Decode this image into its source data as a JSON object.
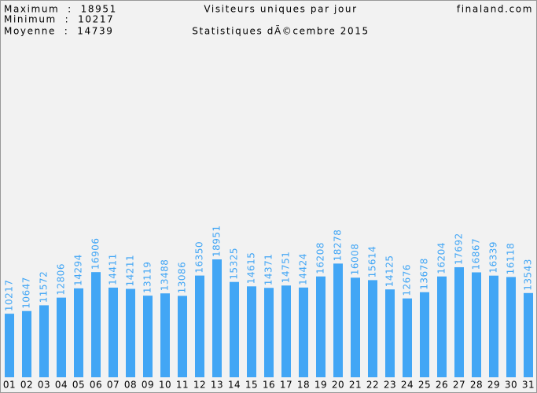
{
  "chart_data": {
    "type": "bar",
    "title": "Visiteurs uniques par jour",
    "subtitle": "Statistiques dÃ©cembre 2015",
    "site": "finaland.com",
    "summary": [
      "Maximum  :  18951",
      "Minimum  :  10217",
      "Moyenne  :  14739"
    ],
    "color": "#42a6f5",
    "categories": [
      "01",
      "02",
      "03",
      "04",
      "05",
      "06",
      "07",
      "08",
      "09",
      "10",
      "11",
      "12",
      "13",
      "14",
      "15",
      "16",
      "17",
      "18",
      "19",
      "20",
      "21",
      "22",
      "23",
      "24",
      "25",
      "26",
      "27",
      "28",
      "29",
      "30",
      "31"
    ],
    "values": [
      10217,
      10647,
      11572,
      12806,
      14294,
      16906,
      14411,
      14211,
      13119,
      13488,
      13086,
      16350,
      18951,
      15325,
      14615,
      14371,
      14751,
      14424,
      16208,
      18278,
      16008,
      15614,
      14125,
      12676,
      13678,
      16204,
      17692,
      16867,
      16339,
      16118,
      13543
    ]
  }
}
